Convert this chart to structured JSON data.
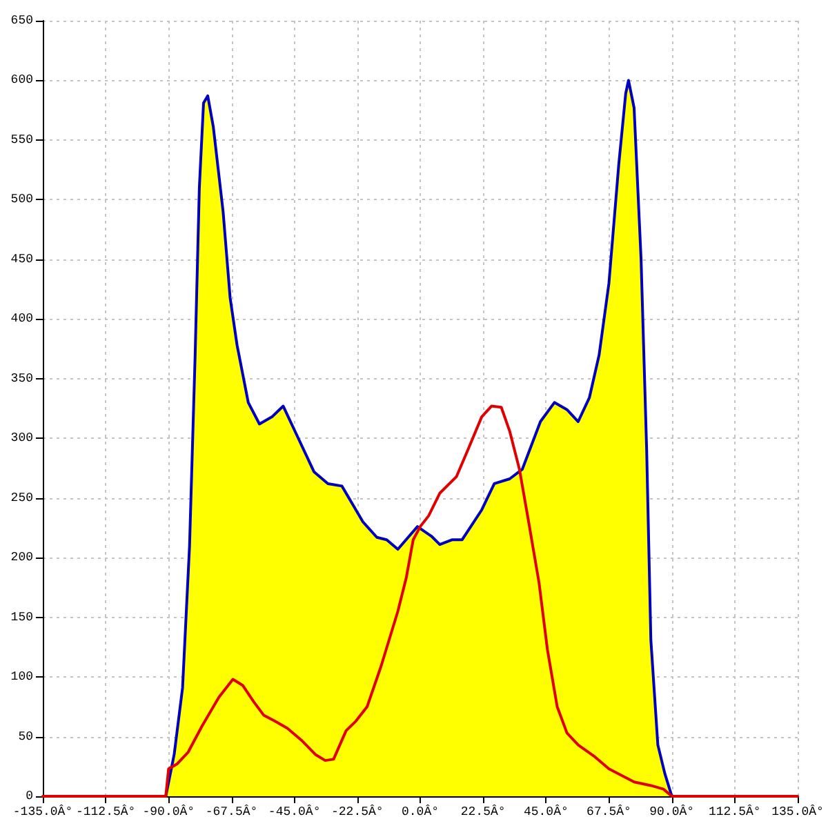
{
  "chart_data": {
    "type": "area",
    "xlim": [
      -135,
      135
    ],
    "xticks": [
      {
        "value": -135,
        "label": "-135.0Â°"
      },
      {
        "value": -112.5,
        "label": "-112.5Â°"
      },
      {
        "value": -90,
        "label": "-90.0Â°"
      },
      {
        "value": -67.5,
        "label": "-67.5Â°"
      },
      {
        "value": -45,
        "label": "-45.0Â°"
      },
      {
        "value": -22.5,
        "label": "-22.5Â°"
      },
      {
        "value": 0,
        "label": "0.0Â°"
      },
      {
        "value": 22.5,
        "label": "22.5Â°"
      },
      {
        "value": 45,
        "label": "45.0Â°"
      },
      {
        "value": 67.5,
        "label": "67.5Â°"
      },
      {
        "value": 90,
        "label": "90.0Â°"
      },
      {
        "value": 112.5,
        "label": "112.5Â°"
      },
      {
        "value": 135,
        "label": "135.0Â°"
      }
    ],
    "ylim": [
      0,
      650
    ],
    "yticks": [
      0,
      50,
      100,
      150,
      200,
      250,
      300,
      350,
      400,
      450,
      500,
      550,
      600,
      650
    ],
    "grid": true,
    "marker": "none",
    "series": [
      {
        "color": "#ffff00",
        "x": [
          -91,
          -88,
          -85,
          -82.5,
          -80.5,
          -79,
          -77.5,
          -76,
          -74,
          -70.5,
          -68,
          -65.5,
          -61.5,
          -57.5,
          -53,
          -49,
          -44,
          -38,
          -33,
          -28,
          -20.5,
          -15.5,
          -12,
          -8,
          -1,
          4,
          7,
          11.5,
          15,
          22,
          26.5,
          32,
          36.5,
          43,
          48,
          52.5,
          56.5,
          60.5,
          64,
          67.5,
          71,
          73.5,
          74.5,
          76.5,
          79,
          81,
          82.5,
          85,
          87.5,
          90
        ],
        "values": [
          0,
          35,
          91,
          210,
          370,
          510,
          581,
          587,
          561,
          490,
          418,
          378,
          330,
          312,
          318,
          327,
          302,
          272,
          262,
          260,
          230,
          217,
          215,
          207,
          226,
          218,
          211,
          215,
          215,
          240,
          262,
          266,
          274,
          314,
          330,
          324,
          314,
          334,
          370,
          430,
          529,
          589,
          600,
          577,
          450,
          290,
          131,
          43,
          19,
          0
        ]
      },
      {
        "type": "line",
        "color": "#e00000",
        "x": [
          -135,
          -91,
          -90,
          -87,
          -83,
          -78,
          -72,
          -67,
          -63.5,
          -59.5,
          -56,
          -52,
          -47.5,
          -42.5,
          -37.5,
          -34,
          -31,
          -26.5,
          -23,
          -19,
          -14,
          -8,
          -5,
          -2.5,
          0,
          3,
          7,
          13,
          17,
          22,
          25.5,
          29,
          32,
          35.5,
          39,
          42.5,
          45.5,
          49,
          52.5,
          56.5,
          62.5,
          67.5,
          76.5,
          82.5,
          87,
          90,
          135
        ],
        "values": [
          0,
          0,
          23,
          27,
          37,
          59,
          83,
          98,
          93,
          79,
          68,
          63,
          57,
          47,
          35,
          30,
          31,
          55,
          63,
          75,
          109,
          155,
          183,
          215,
          226,
          235,
          254,
          268,
          290,
          318,
          327,
          326,
          306,
          274,
          227,
          179,
          123,
          75,
          53,
          43,
          33,
          23,
          12,
          9,
          6,
          0,
          0
        ]
      }
    ]
  }
}
